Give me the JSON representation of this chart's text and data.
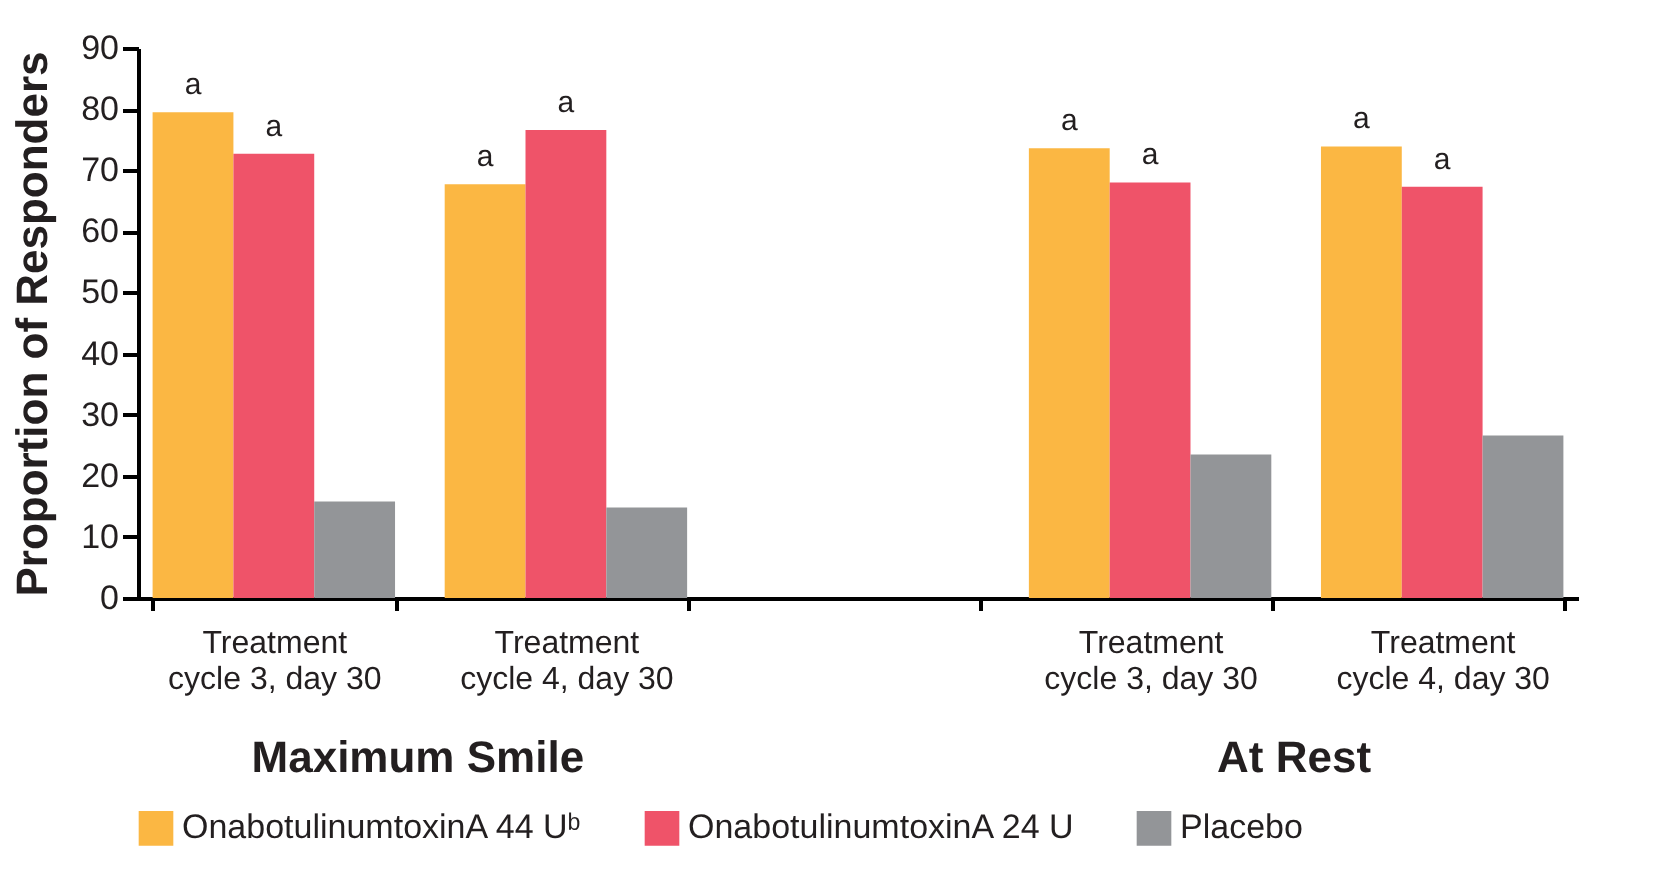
{
  "chart_data": {
    "type": "bar",
    "ylabel": "Proportion of Responders",
    "categories": [
      "Treatment\ncycle 3, day 30",
      "Treatment\ncycle 4, day 30",
      null,
      "Treatment\ncycle 3, day 30",
      "Treatment\ncycle 4, day 30"
    ],
    "series": [
      {
        "name": "OnabotulinumtoxinA 44 Uᵇ",
        "color": "#fbb743",
        "values": [
          79.5,
          67.7,
          null,
          73.6,
          73.9
        ],
        "value_labels": [
          "a",
          "a",
          null,
          "a",
          "a"
        ]
      },
      {
        "name": "OnabotulinumtoxinA 24 U",
        "color": "#ef5369",
        "values": [
          72.7,
          76.6,
          null,
          68.0,
          67.3
        ],
        "value_labels": [
          "a",
          "a",
          null,
          "a",
          "a"
        ]
      },
      {
        "name": "Placebo",
        "color": "#939598",
        "values": [
          15.8,
          14.8,
          null,
          23.5,
          26.6
        ]
      }
    ],
    "annotations": [
      "Maximum Smile",
      "At Rest"
    ],
    "ylim": [
      0,
      90
    ],
    "yticks": [
      0,
      10,
      20,
      30,
      40,
      50,
      60,
      70,
      80,
      90
    ],
    "grid": false,
    "legend": "bottom"
  }
}
